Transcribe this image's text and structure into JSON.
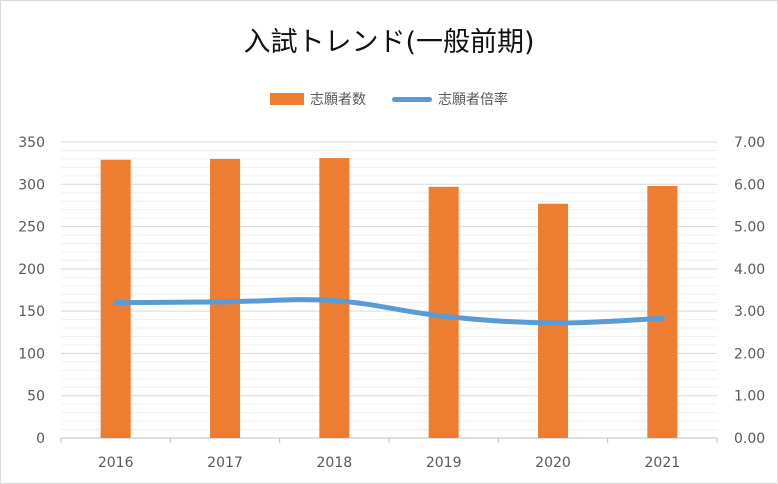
{
  "chart_data": {
    "type": "bar",
    "title": "入試トレンド(一般前期)",
    "categories": [
      "2016",
      "2017",
      "2018",
      "2019",
      "2020",
      "2021"
    ],
    "series": [
      {
        "name": "志願者数",
        "type": "bar",
        "axis": "left",
        "values": [
          329,
          330,
          331,
          297,
          277,
          298
        ],
        "color": "#ed7d31"
      },
      {
        "name": "志願者倍率",
        "type": "line",
        "axis": "right",
        "values": [
          3.2,
          3.22,
          3.25,
          2.88,
          2.72,
          2.83
        ],
        "color": "#5b9bd5"
      }
    ],
    "ylim": [
      0,
      350
    ],
    "y_ticks": [
      "0",
      "50",
      "100",
      "150",
      "200",
      "250",
      "300",
      "350"
    ],
    "y2lim": [
      0,
      7
    ],
    "y2_ticks": [
      "0.00",
      "1.00",
      "2.00",
      "3.00",
      "4.00",
      "5.00",
      "6.00",
      "7.00"
    ],
    "legend_position": "top",
    "grid": true
  }
}
